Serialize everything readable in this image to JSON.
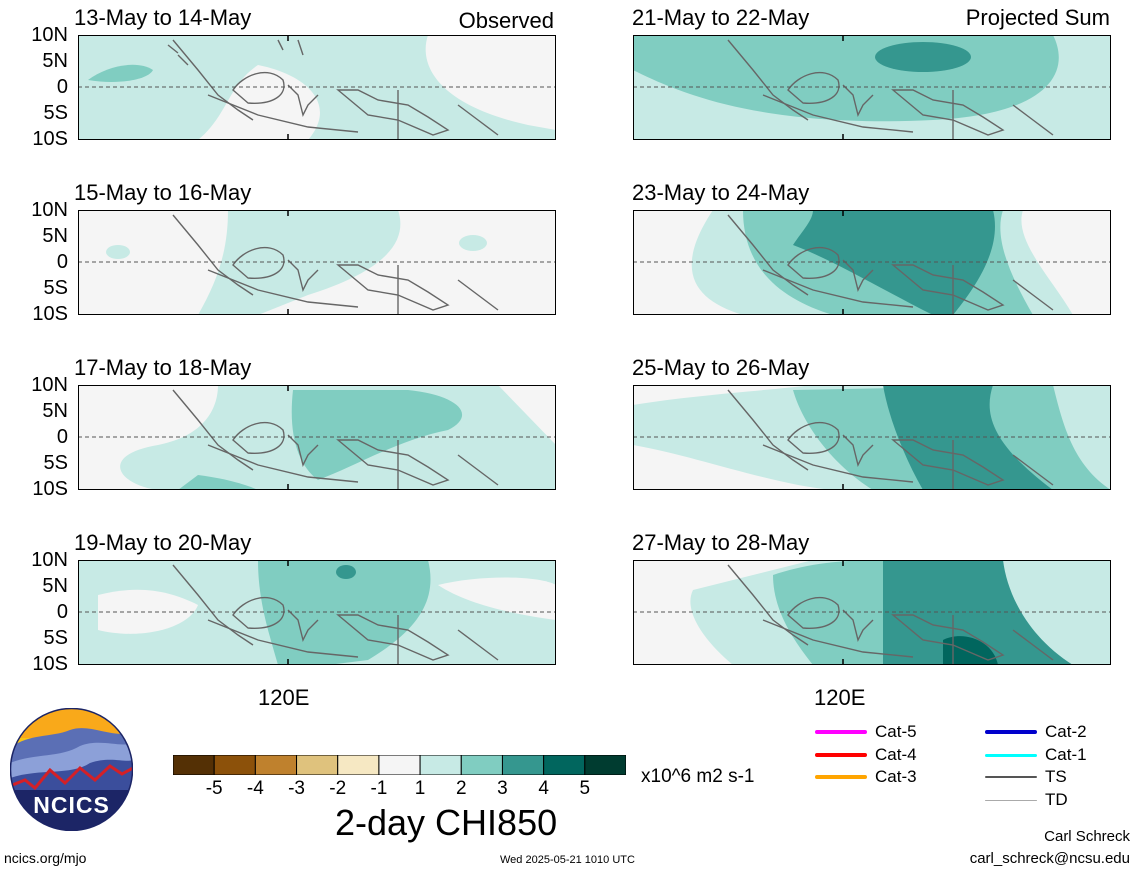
{
  "panels": [
    {
      "title": "13-May to 14-May",
      "label": "Observed"
    },
    {
      "title": "15-May to 16-May",
      "label": ""
    },
    {
      "title": "17-May to 18-May",
      "label": ""
    },
    {
      "title": "19-May to 20-May",
      "label": ""
    },
    {
      "title": "21-May to 22-May",
      "label": "Projected Sum"
    },
    {
      "title": "23-May to 24-May",
      "label": ""
    },
    {
      "title": "25-May to 26-May",
      "label": ""
    },
    {
      "title": "27-May to 28-May",
      "label": ""
    }
  ],
  "lat_labels": [
    "10N",
    "5N",
    "0",
    "5S",
    "10S"
  ],
  "lon_label": "120E",
  "colorbar": {
    "ticks": [
      "-5",
      "-4",
      "-3",
      "-2",
      "-1",
      "1",
      "2",
      "3",
      "4",
      "5"
    ],
    "colors": [
      "#543005",
      "#8c510a",
      "#bf812d",
      "#dfc27d",
      "#f6e8c3",
      "#f5f5f5",
      "#c7eae5",
      "#80cdc1",
      "#35978f",
      "#01665e",
      "#003c30"
    ],
    "units": "x10^6 m2 s-1",
    "title": "2-day CHI850"
  },
  "legend": [
    {
      "label": "Cat-5",
      "color": "#ff00ff"
    },
    {
      "label": "Cat-4",
      "color": "#ff0000"
    },
    {
      "label": "Cat-3",
      "color": "#ffa500"
    },
    {
      "label": "Cat-2",
      "color": "#0000cc"
    },
    {
      "label": "Cat-1",
      "color": "#00ffff"
    },
    {
      "label": "TS",
      "color": "#555555"
    },
    {
      "label": "TD",
      "color": "#aaaaaa"
    }
  ],
  "logo": {
    "text": "NCICS"
  },
  "footer": {
    "site": "ncics.org/mjo",
    "timestamp": "Wed 2025-05-21 1010 UTC",
    "author": "Carl Schreck",
    "email": "carl_schreck@ncsu.edu"
  }
}
